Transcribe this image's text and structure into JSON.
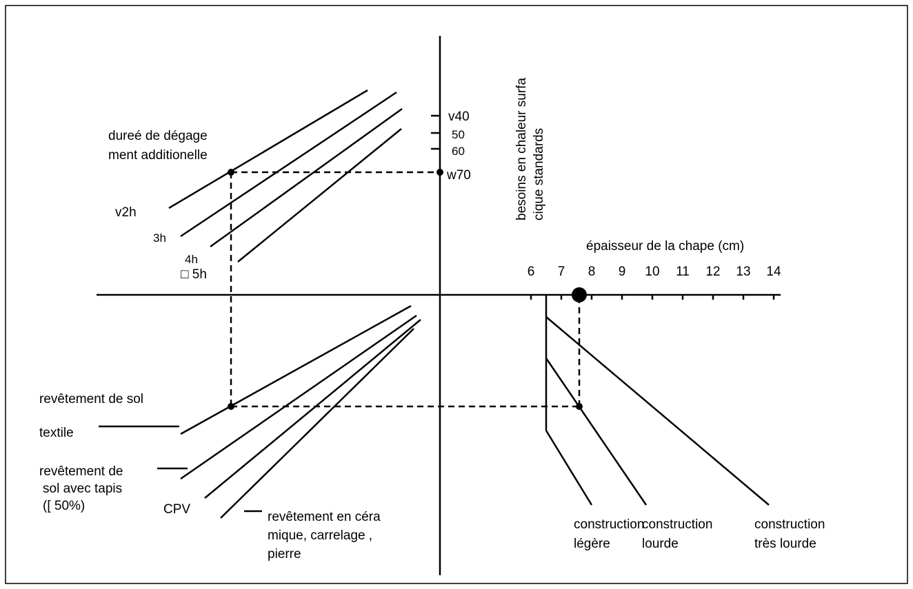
{
  "top": {
    "label": [
      "dureé de dégage",
      "ment additionelle"
    ],
    "durations": [
      "v2h",
      "3h",
      "4h",
      "□ 5h"
    ]
  },
  "heat_axis": {
    "label": [
      "besoins en chaleur surfa",
      "cique standards"
    ],
    "ticks": [
      "v40",
      "50",
      "60",
      "w70"
    ]
  },
  "thickness_axis": {
    "label": "épaisseur de la chape (cm)",
    "ticks": [
      "6",
      "7",
      "8",
      "9",
      "10",
      "11",
      "12",
      "13",
      "14"
    ]
  },
  "coverings": [
    "revêtement  de sol",
    "textile",
    "revêtement de",
    "sol avec tapis",
    "([ 50%)",
    "CPV",
    "revêtement en céra",
    "mique, carrelage ,",
    "pierre"
  ],
  "constructions": [
    [
      "construction",
      "légère"
    ],
    [
      "construction",
      "lourde"
    ],
    [
      "construction",
      "très lourde"
    ]
  ]
}
